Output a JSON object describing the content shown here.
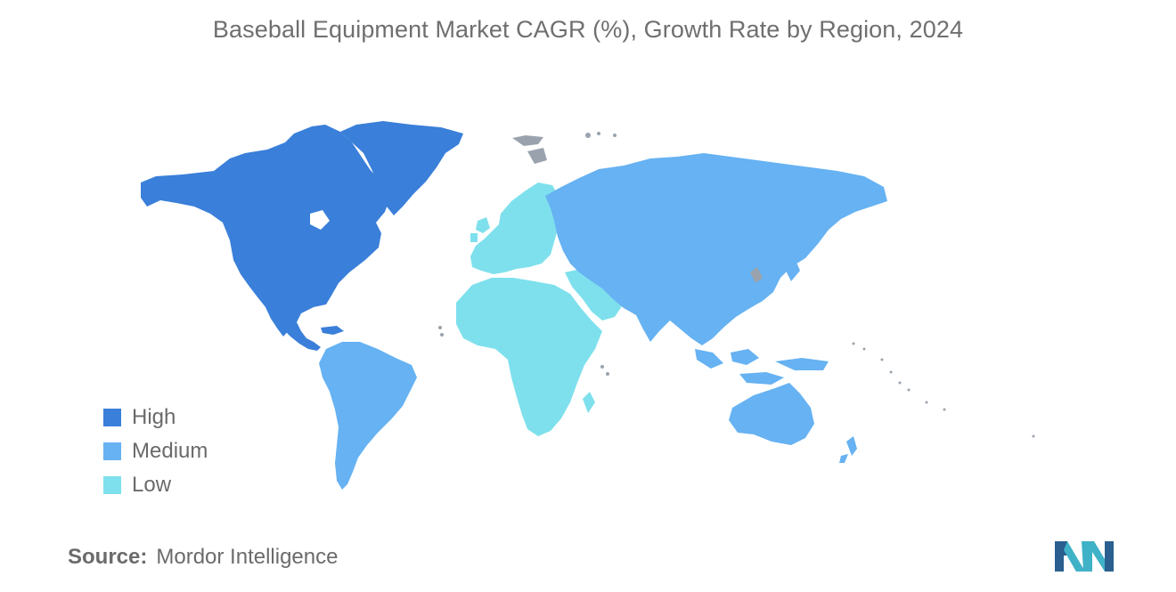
{
  "title": "Baseball Equipment Market CAGR (%), Growth Rate by Region, 2024",
  "legend": [
    {
      "label": "High",
      "color": "#3a7fd9"
    },
    {
      "label": "Medium",
      "color": "#66b2f2"
    },
    {
      "label": "Low",
      "color": "#7ee0ec"
    }
  ],
  "regions": [
    {
      "name": "North America",
      "level": "High"
    },
    {
      "name": "Greenland",
      "level": "High"
    },
    {
      "name": "South America",
      "level": "Medium"
    },
    {
      "name": "Asia-Pacific",
      "level": "Medium"
    },
    {
      "name": "Russia",
      "level": "Medium"
    },
    {
      "name": "Australia",
      "level": "Medium"
    },
    {
      "name": "Europe",
      "level": "Low"
    },
    {
      "name": "Africa",
      "level": "Low"
    },
    {
      "name": "Middle East",
      "level": "Low"
    }
  ],
  "no_data_color": "#9aa3ad",
  "source": {
    "label": "Source:",
    "value": "Mordor Intelligence"
  },
  "logo_colors": [
    "#2a5f8f",
    "#3fb2c8"
  ]
}
